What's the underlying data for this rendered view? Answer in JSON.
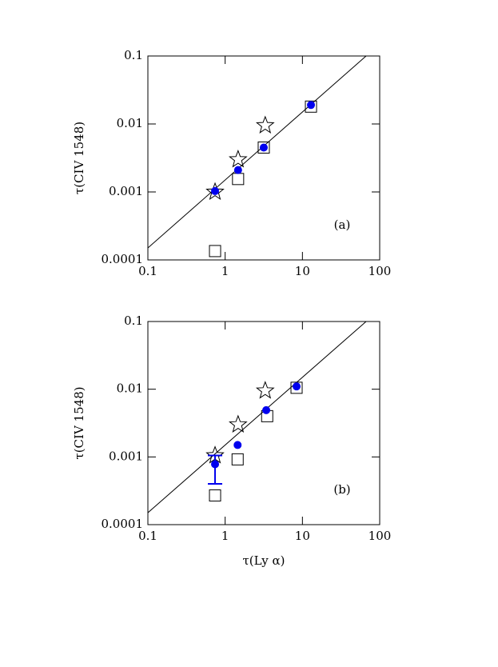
{
  "chart_data": [
    {
      "type": "scatter",
      "ylabel": "τ(CIV 1548)",
      "annotation": "(a)",
      "xlim": [
        0.1,
        100
      ],
      "ylim": [
        0.0001,
        0.1
      ],
      "xticks": [
        0.1,
        1,
        10,
        100
      ],
      "yticks": [
        0.0001,
        0.001,
        0.01,
        0.1
      ],
      "log_x": true,
      "log_y": true,
      "series": [
        {
          "marker": "line",
          "color": "#000000",
          "x": [
            0.1,
            66.7
          ],
          "values": [
            0.00015,
            0.1
          ]
        },
        {
          "marker": "square",
          "color": "#000000",
          "x": [
            0.74,
            1.47,
            3.16,
            12.9
          ],
          "values": [
            0.000135,
            0.00155,
            0.0045,
            0.018
          ]
        },
        {
          "marker": "star",
          "color": "#000000",
          "x": [
            0.74,
            1.47,
            3.3
          ],
          "values": [
            0.001,
            0.003,
            0.0095
          ]
        },
        {
          "marker": "circle",
          "color": "#0000ee",
          "x": [
            0.74,
            1.47,
            3.16,
            12.9
          ],
          "values": [
            0.00103,
            0.0021,
            0.0045,
            0.019
          ]
        }
      ]
    },
    {
      "type": "scatter",
      "ylabel": "τ(CIV 1548)",
      "xlabel": "τ(Ly α)",
      "annotation": "(b)",
      "xlim": [
        0.1,
        100
      ],
      "ylim": [
        0.0001,
        0.1
      ],
      "xticks": [
        0.1,
        1,
        10,
        100
      ],
      "yticks": [
        0.0001,
        0.001,
        0.01,
        0.1
      ],
      "log_x": true,
      "log_y": true,
      "series": [
        {
          "marker": "line",
          "color": "#000000",
          "x": [
            0.1,
            66.7
          ],
          "values": [
            0.00015,
            0.1
          ]
        },
        {
          "marker": "square",
          "color": "#000000",
          "x": [
            0.74,
            1.45,
            3.5,
            8.4
          ],
          "values": [
            0.00027,
            0.00092,
            0.004,
            0.0105
          ]
        },
        {
          "marker": "star",
          "color": "#000000",
          "x": [
            0.74,
            1.47,
            3.3
          ],
          "values": [
            0.00105,
            0.003,
            0.0095
          ]
        },
        {
          "marker": "circle",
          "color": "#0000ee",
          "x": [
            0.74,
            1.45,
            3.4,
            8.4
          ],
          "values": [
            0.00078,
            0.0015,
            0.0049,
            0.011
          ],
          "err_low": [
            0.0004,
            null,
            null,
            null
          ],
          "err_high": [
            0.00105,
            null,
            null,
            null
          ]
        }
      ]
    }
  ]
}
